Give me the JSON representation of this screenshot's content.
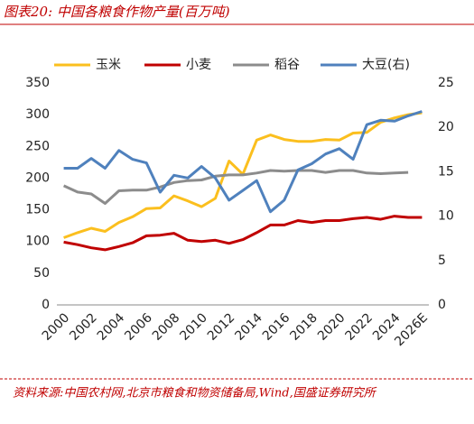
{
  "chart_data": {
    "type": "line",
    "title": "图表20: 中国各粮食作物产量(百万吨)",
    "source": "资料来源:中国农村网,北京市粮食和物资储备局,Wind,国盛证券研究所",
    "categories": [
      "2000",
      null,
      "2002",
      null,
      "2004",
      null,
      "2006",
      null,
      "2008",
      null,
      "2010",
      null,
      "2012",
      null,
      "2014",
      null,
      "2016",
      null,
      "2018",
      null,
      "2020",
      null,
      "2022",
      null,
      "2024",
      null,
      "2026E"
    ],
    "series": [
      {
        "name": "玉米",
        "color": "#fbbf1e",
        "values": [
          106,
          114,
          121,
          116,
          130,
          139,
          152,
          153,
          172,
          164,
          155,
          168,
          227,
          206,
          260,
          268,
          261,
          258,
          258,
          261,
          260,
          271,
          272,
          288,
          295,
          300,
          303
        ]
      },
      {
        "name": "小麦",
        "color": "#c00000",
        "values": [
          99,
          95,
          90,
          87,
          92,
          98,
          109,
          110,
          113,
          102,
          100,
          102,
          97,
          103,
          114,
          126,
          126,
          133,
          130,
          133,
          133,
          136,
          138,
          135,
          140,
          138,
          138
        ]
      },
      {
        "name": "稻谷",
        "color": "#8c8c8c",
        "values": [
          188,
          178,
          175,
          160,
          180,
          181,
          181,
          186,
          193,
          196,
          197,
          203,
          205,
          205,
          208,
          212,
          211,
          212,
          212,
          209,
          212,
          212,
          208,
          207,
          208,
          209,
          null
        ]
      },
      {
        "name": "大豆(右)",
        "color": "#4f81bd",
        "axis": "y2",
        "values": [
          15.4,
          15.4,
          16.5,
          15.4,
          17.4,
          16.4,
          16.0,
          12.7,
          14.6,
          14.3,
          15.6,
          14.3,
          11.8,
          12.9,
          14.0,
          10.5,
          11.8,
          15.2,
          15.9,
          17.0,
          17.6,
          16.4,
          20.3,
          20.8,
          20.7,
          21.3,
          21.8
        ]
      }
    ],
    "ylim": [
      0,
      350
    ],
    "yticks": [
      0,
      50,
      100,
      150,
      200,
      250,
      300,
      350
    ],
    "y2lim": [
      0,
      25
    ],
    "y2ticks": [
      0,
      5,
      10,
      15,
      20,
      25
    ],
    "grid": false
  }
}
